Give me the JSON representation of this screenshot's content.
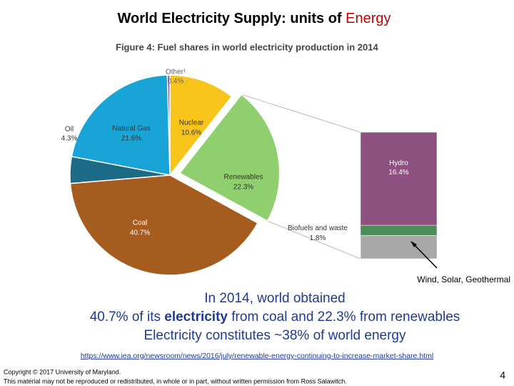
{
  "slide": {
    "title": [
      "World Electricity Supply: units of ",
      "Energy"
    ],
    "body": [
      [
        "In 2014, world obtained"
      ],
      [
        "40.7% of its ",
        "electricity",
        " from coal and 22.3% from renewables"
      ],
      [
        "Electricity constitutes ~38% of world energy"
      ]
    ],
    "link": "https://www.iea.org/newsroom/news/2016/july/renewable-energy-continuing-to-increase-market-share.html",
    "copyright": [
      "Copyright © 2017 University of Maryland.",
      "This material may not be reproduced or redistributed, in whole or in part, without written permission from Ross Salawitch."
    ],
    "page_number": "4"
  },
  "chart_data": [
    {
      "type": "pie",
      "title": "Figure 4: Fuel shares in world electricity production in 2014",
      "categories": [
        "Nuclear",
        "Renewables",
        "Coal",
        "Oil",
        "Natural Gas",
        "Other¹"
      ],
      "values": [
        10.6,
        22.3,
        40.7,
        4.3,
        21.6,
        0.4
      ],
      "value_labels": [
        "10.6%",
        "22.3%",
        "40.7%",
        "4.3%",
        "21.6%",
        "0.4%"
      ],
      "colors": [
        "#f8c41a",
        "#8fcf6e",
        "#a65b1f",
        "#1c6a87",
        "#18a4d6",
        "#7d5a96"
      ],
      "explode": "Renewables"
    },
    {
      "type": "stacked-bar",
      "series": [
        {
          "name": "Hydro",
          "color": "#8e5080",
          "values": [
            16.4
          ],
          "value_labels": [
            "16.4%"
          ]
        },
        {
          "name": "Biofuels and waste",
          "color": "#4c8c57",
          "values": [
            1.8
          ],
          "value_labels": [
            "1.8%"
          ]
        },
        {
          "name": "Wind, Solar, Geothermal",
          "color": "#a8a8a8",
          "values": [
            4.1
          ]
        }
      ]
    }
  ]
}
